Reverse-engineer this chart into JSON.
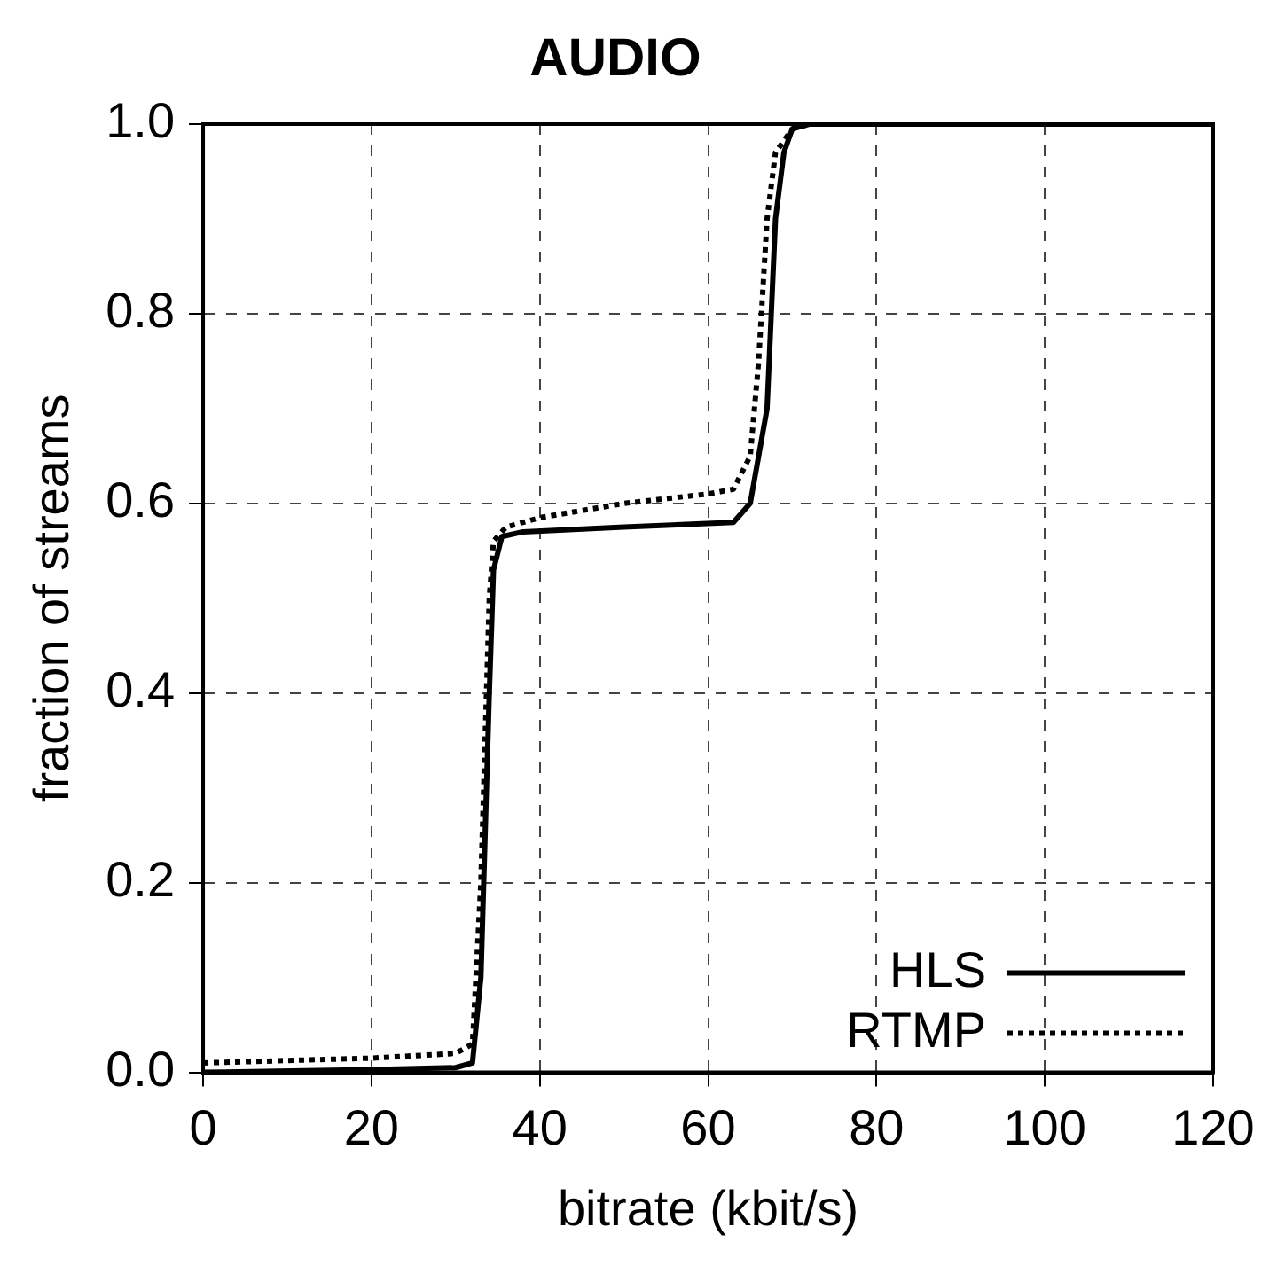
{
  "chart_data": {
    "type": "line",
    "title": "AUDIO",
    "xlabel": "bitrate (kbit/s)",
    "ylabel": "fraction of streams",
    "xlim": [
      0,
      120
    ],
    "xticks": [
      0,
      20,
      40,
      60,
      80,
      100,
      120
    ],
    "ylim": [
      0,
      1
    ],
    "yticks": [
      {
        "value": 0,
        "label": "0.0"
      },
      0.2,
      0.4,
      0.6,
      0.8,
      {
        "value": 1,
        "label": "1.0"
      }
    ],
    "grid": true,
    "legend": "bottom right",
    "marker": "none",
    "series": [
      {
        "name": "HLS",
        "color": "#000000",
        "line_style": "solid",
        "x": [
          0,
          20,
          30,
          32,
          33,
          34,
          34.5,
          35.5,
          38,
          50,
          63,
          65,
          66,
          67,
          67.5,
          68,
          69,
          70,
          72,
          120
        ],
        "values": [
          0,
          0.003,
          0.005,
          0.01,
          0.1,
          0.4,
          0.53,
          0.565,
          0.57,
          0.575,
          0.58,
          0.6,
          0.65,
          0.7,
          0.8,
          0.9,
          0.97,
          0.995,
          1,
          1
        ]
      },
      {
        "name": "RTMP",
        "color": "#000000",
        "line_style": "dotted",
        "x": [
          0,
          20,
          30,
          32,
          33,
          34,
          34.5,
          36,
          40,
          50,
          60,
          63,
          65,
          66,
          67,
          68,
          70,
          72,
          120
        ],
        "values": [
          0.01,
          0.015,
          0.02,
          0.03,
          0.2,
          0.5,
          0.56,
          0.575,
          0.585,
          0.6,
          0.61,
          0.615,
          0.65,
          0.75,
          0.9,
          0.97,
          0.995,
          1,
          1
        ]
      }
    ]
  }
}
